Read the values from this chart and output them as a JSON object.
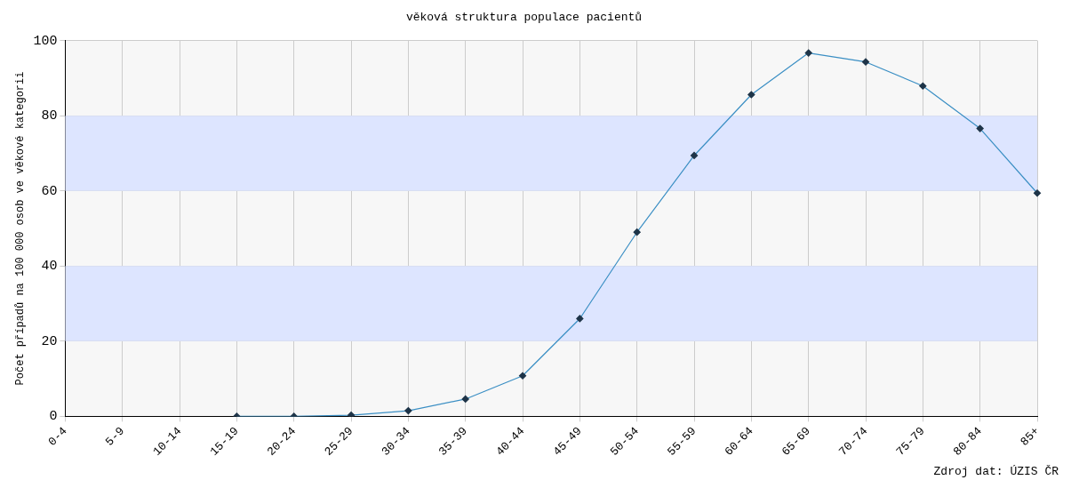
{
  "chart_data": {
    "type": "line",
    "title": "věková struktura populace pacientů",
    "ylabel": "Počet případů na 100 000 osob ve věkové kategorii",
    "categories": [
      "0-4",
      "5-9",
      "10-14",
      "15-19",
      "20-24",
      "25-29",
      "30-34",
      "35-39",
      "40-44",
      "45-49",
      "50-54",
      "55-59",
      "60-64",
      "65-69",
      "70-74",
      "75-79",
      "80-84",
      "85+"
    ],
    "series": [
      {
        "color": "#3b8fc4",
        "values": [
          null,
          null,
          null,
          0,
          0,
          0.3,
          1.5,
          4.6,
          10.8,
          26,
          49,
          69.4,
          85.6,
          96.7,
          94.3,
          87.9,
          76.6,
          59.4
        ]
      }
    ],
    "ylim": [
      0,
      100
    ],
    "yticks": [
      0,
      20,
      40,
      60,
      80,
      100
    ],
    "grid": true,
    "marker": "diamond",
    "legend": false,
    "bands": [
      {
        "axis": "y",
        "from": 20,
        "to": 40,
        "color": "#dde5ff"
      },
      {
        "axis": "y",
        "from": 60,
        "to": 80,
        "color": "#dde5ff"
      }
    ],
    "annotations": [
      "Zdroj dat: ÚZIS ČR"
    ]
  }
}
